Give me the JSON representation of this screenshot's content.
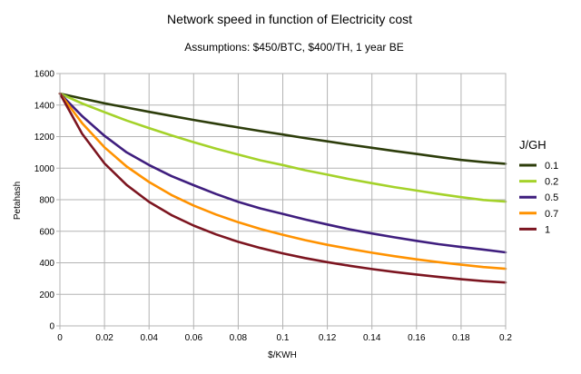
{
  "chart_data": {
    "type": "line",
    "title": "Network speed in function of Electricity cost",
    "subtitle": "Assumptions:  $450/BTC, $400/TH, 1 year BE",
    "xlabel": "$/KWH",
    "ylabel": "Petahash",
    "xlim": [
      0,
      0.2
    ],
    "ylim": [
      0,
      1600
    ],
    "x_ticks": [
      "0",
      "0.02",
      "0.04",
      "0.06",
      "0.08",
      "0.1",
      "0.12",
      "0.14",
      "0.16",
      "0.18",
      "0.2"
    ],
    "y_ticks": [
      "0",
      "200",
      "400",
      "600",
      "800",
      "1000",
      "1200",
      "1400",
      "1600"
    ],
    "grid": true,
    "legend_title": "J/GH",
    "legend_position": "right",
    "x": [
      0,
      0.01,
      0.02,
      0.03,
      0.04,
      0.05,
      0.06,
      0.07,
      0.08,
      0.09,
      0.1,
      0.11,
      0.12,
      0.13,
      0.14,
      0.15,
      0.16,
      0.17,
      0.18,
      0.19,
      0.2
    ],
    "series": [
      {
        "name": "0.1",
        "color": "#2d3d0b",
        "values": [
          1473,
          1442,
          1411,
          1384,
          1357,
          1331,
          1306,
          1282,
          1258,
          1235,
          1213,
          1191,
          1170,
          1149,
          1129,
          1109,
          1090,
          1071,
          1052,
          1038,
          1028
        ]
      },
      {
        "name": "0.2",
        "color": "#a4d22a",
        "values": [
          1473,
          1410,
          1355,
          1302,
          1254,
          1208,
          1165,
          1124,
          1086,
          1050,
          1020,
          987,
          959,
          930,
          905,
          880,
          858,
          836,
          816,
          798,
          788
        ]
      },
      {
        "name": "0.5",
        "color": "#3f1e7e",
        "values": [
          1473,
          1330,
          1205,
          1100,
          1020,
          950,
          892,
          836,
          786,
          745,
          710,
          675,
          643,
          612,
          586,
          562,
          539,
          518,
          500,
          484,
          466
        ]
      },
      {
        "name": "0.7",
        "color": "#ff9200",
        "values": [
          1473,
          1285,
          1132,
          1010,
          912,
          830,
          763,
          706,
          657,
          614,
          578,
          544,
          514,
          488,
          464,
          442,
          422,
          404,
          388,
          373,
          362
        ]
      },
      {
        "name": "1",
        "color": "#7c1520",
        "values": [
          1473,
          1218,
          1030,
          893,
          786,
          703,
          636,
          580,
          533,
          494,
          460,
          430,
          404,
          381,
          360,
          342,
          326,
          310,
          296,
          284,
          275
        ]
      }
    ]
  }
}
